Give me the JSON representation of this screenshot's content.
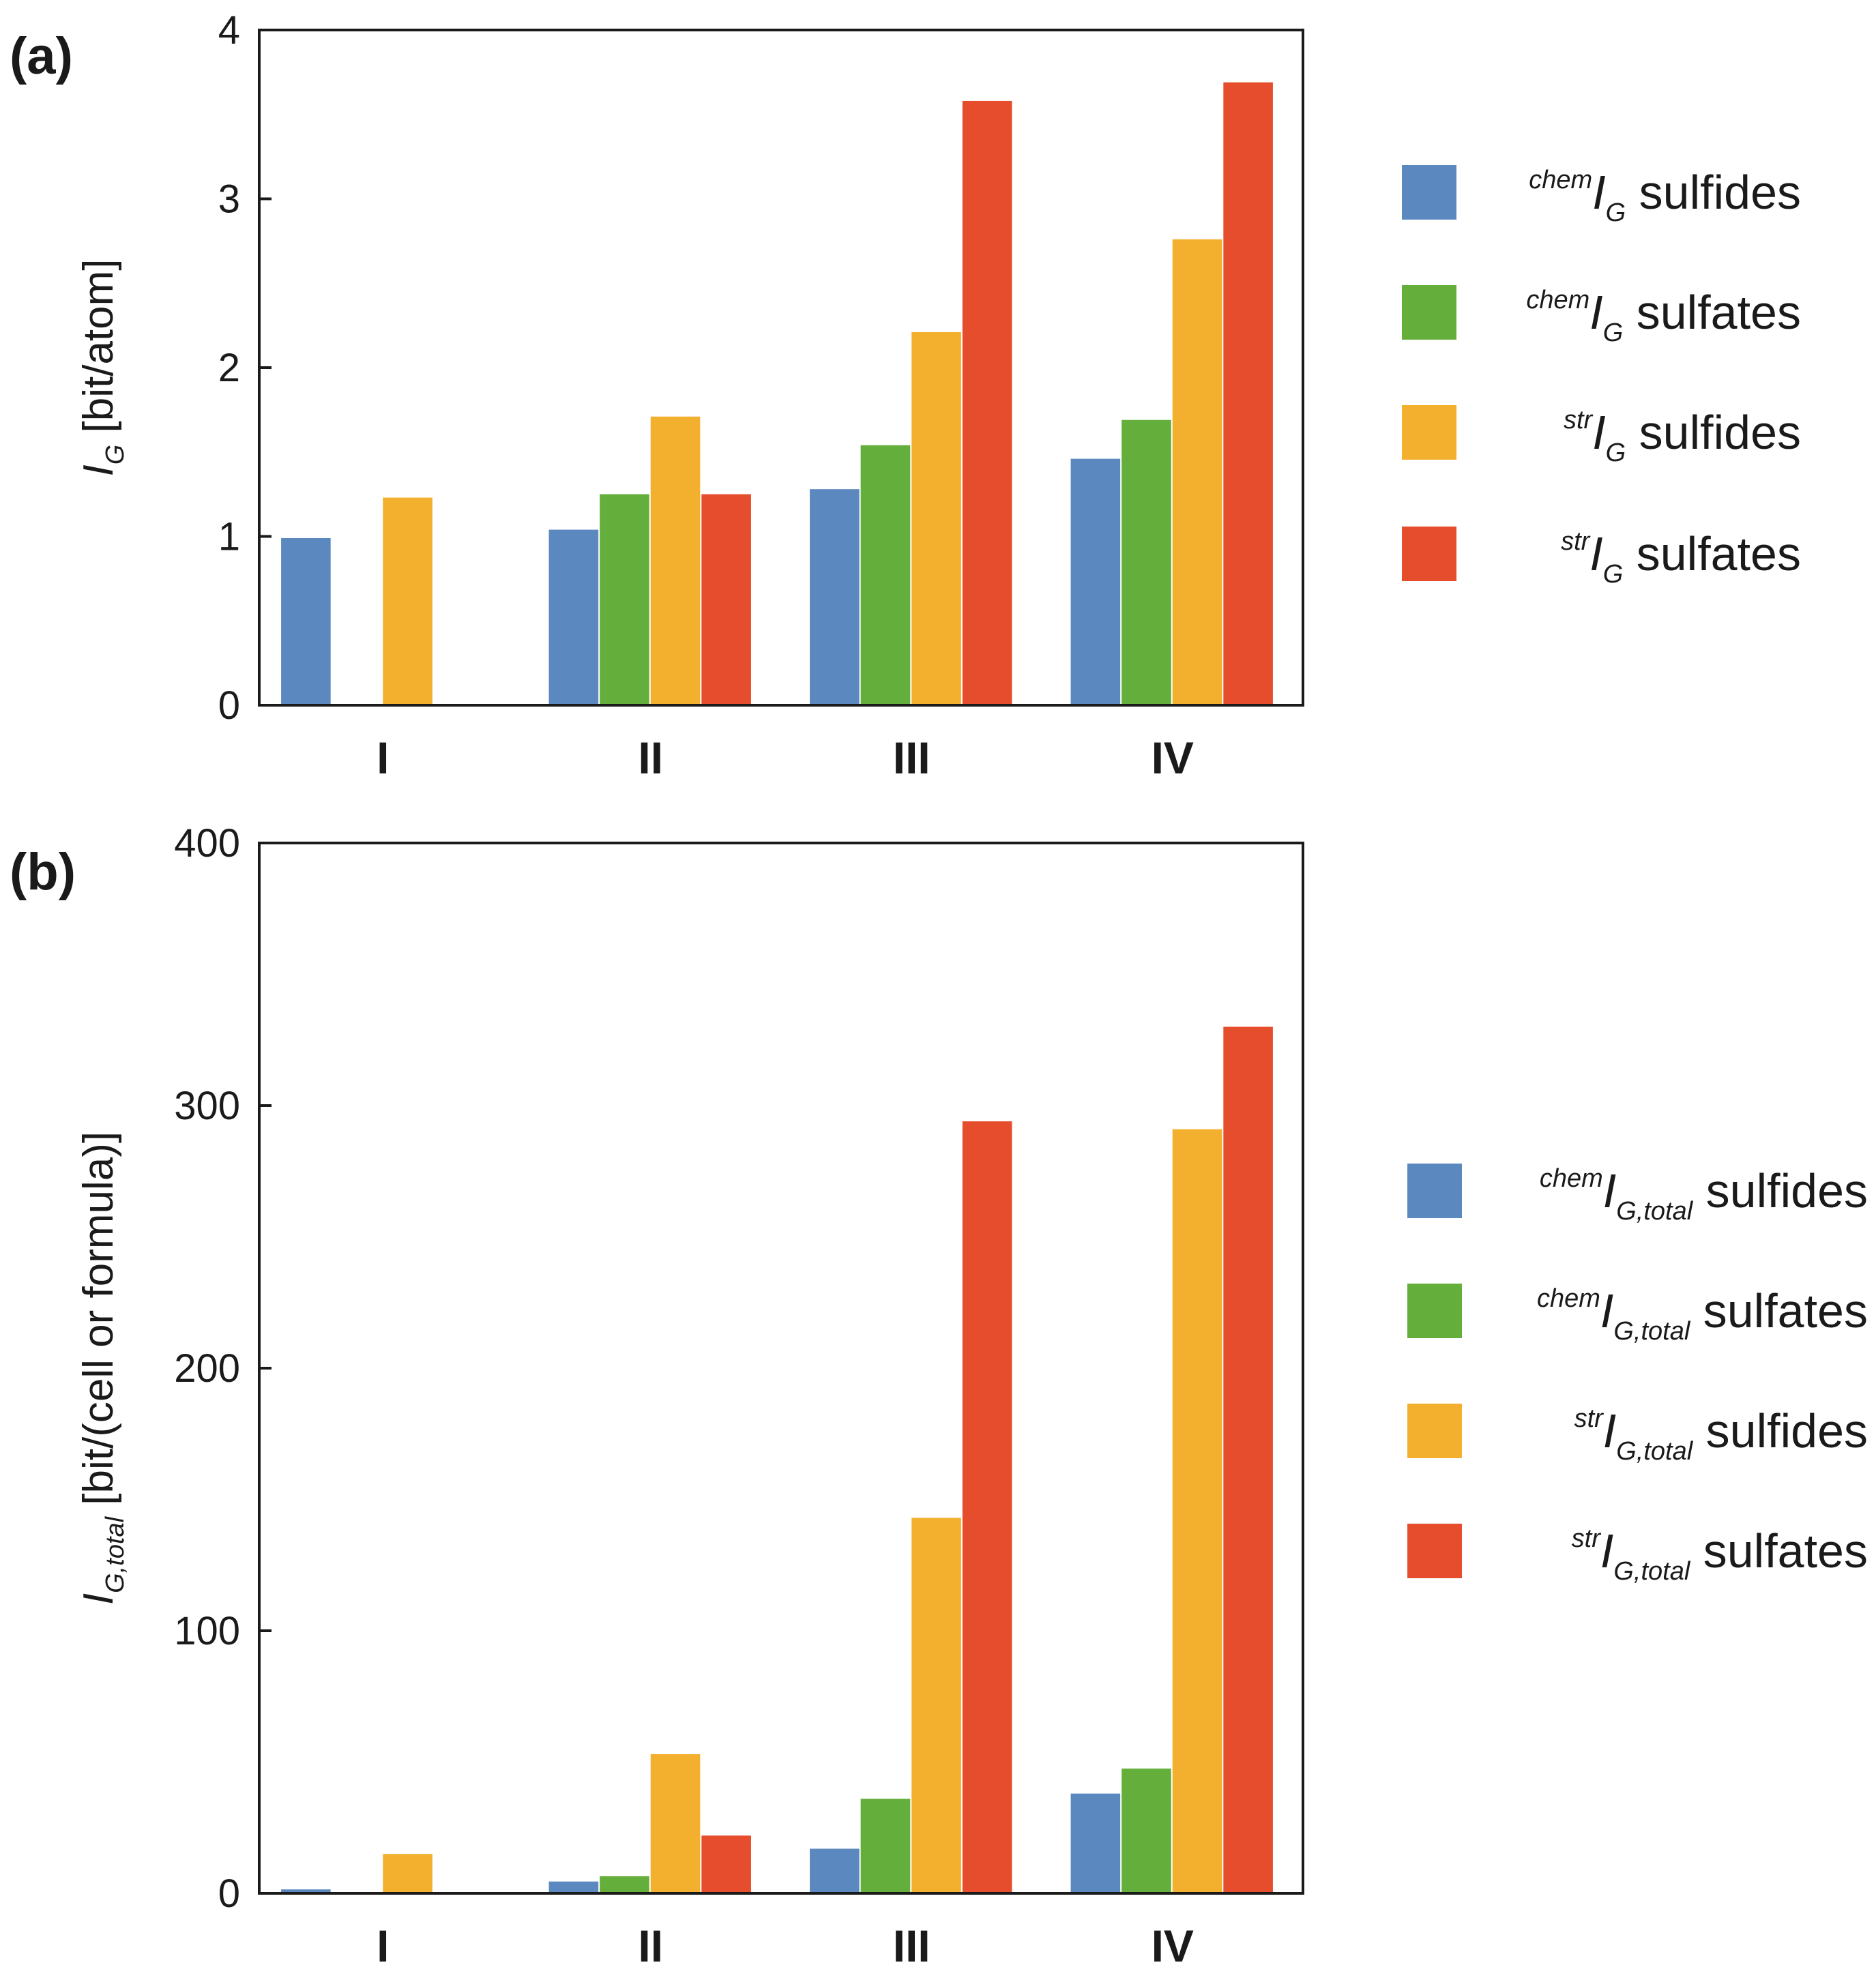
{
  "chart_data": [
    {
      "panel": "(a)",
      "type": "bar",
      "categories": [
        "I",
        "II",
        "III",
        "IV"
      ],
      "ylim": [
        0,
        4
      ],
      "yticks": [
        0,
        1,
        2,
        3,
        4
      ],
      "ylabel": {
        "symbol": "I",
        "subscript": "G",
        "text": " [bit/atom]"
      },
      "legend_position": "right",
      "series": [
        {
          "name": "chem I_G sulfides",
          "color": "#5B88BE",
          "values": [
            0.99,
            1.04,
            1.28,
            1.46
          ],
          "legend": {
            "sup": "chem",
            "symbol": "I",
            "sub": "G",
            "text": " sulfides"
          }
        },
        {
          "name": "chem I_G sulfates",
          "color": "#64AE3B",
          "values": [
            0,
            1.25,
            1.54,
            1.69
          ],
          "legend": {
            "sup": "chem",
            "symbol": "I",
            "sub": "G",
            "text": " sulfates"
          }
        },
        {
          "name": "str I_G sulfides",
          "color": "#F3B02E",
          "values": [
            1.23,
            1.71,
            2.21,
            2.76
          ],
          "legend": {
            "sup": "str",
            "symbol": "I",
            "sub": "G",
            "text": " sulfides"
          }
        },
        {
          "name": "str I_G sulfates",
          "color": "#E64D2C",
          "values": [
            0,
            1.25,
            3.58,
            3.69
          ],
          "legend": {
            "sup": "str",
            "symbol": "I",
            "sub": "G",
            "text": " sulfates"
          }
        }
      ]
    },
    {
      "panel": "(b)",
      "type": "bar",
      "categories": [
        "I",
        "II",
        "III",
        "IV"
      ],
      "ylim": [
        0,
        400
      ],
      "yticks": [
        0,
        100,
        200,
        300,
        400
      ],
      "ylabel": {
        "symbol": "I",
        "subscript": "G,total",
        "text": " [bit/(cell or formula)]"
      },
      "legend_position": "right",
      "series": [
        {
          "name": "chem I_G,total sulfides",
          "color": "#5B88BE",
          "values": [
            1.5,
            4.5,
            17,
            38
          ],
          "legend": {
            "sup": "chem",
            "symbol": "I",
            "sub": "G,total",
            "text": " sulfides"
          }
        },
        {
          "name": "chem I_G,total sulfates",
          "color": "#64AE3B",
          "values": [
            0,
            6.5,
            36,
            47.5
          ],
          "legend": {
            "sup": "chem",
            "symbol": "I",
            "sub": "G,total",
            "text": " sulfates"
          }
        },
        {
          "name": "str I_G,total sulfides",
          "color": "#F3B02E",
          "values": [
            15,
            53,
            143,
            291
          ],
          "legend": {
            "sup": "str",
            "symbol": "I",
            "sub": "G,total",
            "text": " sulfides"
          }
        },
        {
          "name": "str I_G,total sulfates",
          "color": "#E64D2C",
          "values": [
            0,
            22,
            294,
            330
          ],
          "legend": {
            "sup": "str",
            "symbol": "I",
            "sub": "G,total",
            "text": " sulfates"
          }
        }
      ]
    }
  ]
}
